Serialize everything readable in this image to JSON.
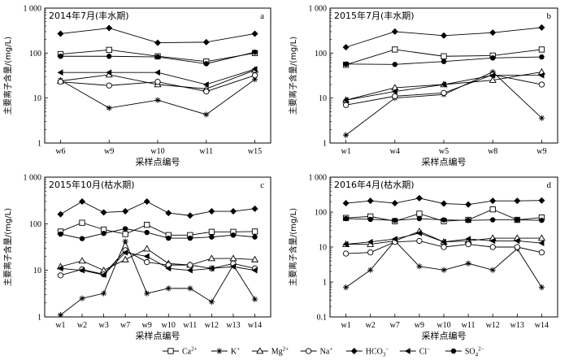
{
  "legend": [
    {
      "base": "Ca",
      "sup": "2+",
      "sub": "",
      "marker": "square-open"
    },
    {
      "base": "K",
      "sup": "+",
      "sub": "",
      "marker": "star"
    },
    {
      "base": "Mg",
      "sup": "2+",
      "sub": "",
      "marker": "triangle-open"
    },
    {
      "base": "Na",
      "sup": "+",
      "sub": "",
      "marker": "circle-open"
    },
    {
      "base": "HCO",
      "sup": "−",
      "sub": "3",
      "marker": "diamond-filled"
    },
    {
      "base": "Cl",
      "sup": "−",
      "sub": "",
      "marker": "triangle-left-filled"
    },
    {
      "base": "SO",
      "sup": "2−",
      "sub": "4",
      "marker": "circle-filled"
    }
  ],
  "chart_data": [
    {
      "type": "line",
      "letter": "a",
      "title": "2014年7月(丰水期)",
      "xlabel": "采样点编号",
      "ylabel": "主要离子含量/(mg/L)",
      "yscale": "log",
      "ylim": [
        1,
        1000
      ],
      "yticks": [
        "1",
        "10",
        "100",
        "1 000"
      ],
      "categories": [
        "w6",
        "w9",
        "w10",
        "w11",
        "w15"
      ],
      "series": [
        {
          "name": "Ca2+",
          "values": [
            95,
            118,
            85,
            65,
            100
          ]
        },
        {
          "name": "K+",
          "values": [
            25,
            6,
            9,
            4.3,
            26
          ]
        },
        {
          "name": "Mg2+",
          "values": [
            24,
            33,
            20,
            16,
            42
          ]
        },
        {
          "name": "Na+",
          "values": [
            23,
            19,
            23,
            14,
            32
          ]
        },
        {
          "name": "HCO3-",
          "values": [
            270,
            360,
            170,
            175,
            270
          ]
        },
        {
          "name": "Cl-",
          "values": [
            37,
            37,
            37,
            20,
            44
          ]
        },
        {
          "name": "SO42-",
          "values": [
            85,
            85,
            82,
            58,
            105
          ]
        }
      ]
    },
    {
      "type": "line",
      "letter": "b",
      "title": "2015年7月(丰水期)",
      "xlabel": "采样点编号",
      "ylabel": "主要离子含量/(mg/L)",
      "yscale": "log",
      "ylim": [
        1,
        1000
      ],
      "yticks": [
        "1",
        "10",
        "100",
        "1 000"
      ],
      "categories": [
        "w1",
        "w4",
        "w5",
        "w8",
        "w9"
      ],
      "series": [
        {
          "name": "Ca2+",
          "values": [
            55,
            120,
            85,
            88,
            120
          ]
        },
        {
          "name": "K+",
          "values": [
            1.5,
            10,
            12,
            38,
            3.6
          ]
        },
        {
          "name": "Mg2+",
          "values": [
            9,
            17,
            20,
            25,
            38
          ]
        },
        {
          "name": "Na+",
          "values": [
            7,
            11,
            13,
            33,
            20
          ]
        },
        {
          "name": "HCO3-",
          "values": [
            135,
            300,
            245,
            285,
            370
          ]
        },
        {
          "name": "Cl-",
          "values": [
            9,
            14,
            20,
            32,
            32
          ]
        },
        {
          "name": "SO42-",
          "values": [
            57,
            56,
            65,
            78,
            82
          ]
        }
      ]
    },
    {
      "type": "line",
      "letter": "c",
      "title": "2015年10月(枯水期)",
      "xlabel": "采样点编号",
      "ylabel": "主要离子含量/(mg/L)",
      "yscale": "log",
      "ylim": [
        1,
        1000
      ],
      "yticks": [
        "1",
        "10",
        "100",
        "1 000"
      ],
      "categories": [
        "w1",
        "w2",
        "w3",
        "w7",
        "w9",
        "w10",
        "w11",
        "w12",
        "w13",
        "w14"
      ],
      "series": [
        {
          "name": "Ca2+",
          "values": [
            68,
            105,
            75,
            60,
            95,
            57,
            57,
            67,
            67,
            68
          ]
        },
        {
          "name": "K+",
          "values": [
            1.1,
            2.5,
            3.2,
            42,
            3.2,
            4.1,
            4.1,
            2.1,
            13,
            2.4
          ]
        },
        {
          "name": "Mg2+",
          "values": [
            12,
            16,
            10,
            17,
            29,
            14,
            13,
            18,
            18,
            17
          ]
        },
        {
          "name": "Na+",
          "values": [
            7.8,
            10.5,
            8.2,
            27,
            15,
            13,
            13,
            11,
            14,
            11
          ]
        },
        {
          "name": "HCO3-",
          "values": [
            160,
            300,
            175,
            185,
            300,
            170,
            150,
            185,
            185,
            210
          ]
        },
        {
          "name": "Cl-",
          "values": [
            11,
            10,
            8,
            24,
            20,
            11,
            10,
            11,
            12,
            10
          ]
        },
        {
          "name": "SO42-",
          "values": [
            60,
            48,
            62,
            78,
            65,
            49,
            49,
            52,
            57,
            52
          ]
        }
      ]
    },
    {
      "type": "line",
      "letter": "d",
      "title": "2016年4月(枯水期)",
      "xlabel": "采样点编号",
      "ylabel": "主要离子含量/(mg/L)",
      "yscale": "log",
      "ylim": [
        0.1,
        1000
      ],
      "yticks": [
        "0.1",
        "1",
        "10",
        "100",
        "1 000"
      ],
      "categories": [
        "w1",
        "w2",
        "w7",
        "w9",
        "w10",
        "w11",
        "w12",
        "w13",
        "w14"
      ],
      "series": [
        {
          "name": "Ca2+",
          "values": [
            68,
            75,
            55,
            90,
            55,
            60,
            120,
            60,
            70
          ]
        },
        {
          "name": "K+",
          "values": [
            0.7,
            2.2,
            15,
            2.8,
            2.2,
            3.4,
            2.2,
            9,
            0.7
          ]
        },
        {
          "name": "Mg2+",
          "values": [
            12,
            12,
            15,
            28,
            14,
            15,
            18,
            18,
            18
          ]
        },
        {
          "name": "Na+",
          "values": [
            6.5,
            7,
            14,
            15,
            10,
            12,
            10,
            10,
            7
          ]
        },
        {
          "name": "HCO3-",
          "values": [
            180,
            210,
            180,
            250,
            175,
            165,
            210,
            210,
            215
          ]
        },
        {
          "name": "Cl-",
          "values": [
            12,
            14,
            17,
            25,
            14,
            17,
            15,
            15,
            13
          ]
        },
        {
          "name": "SO42-",
          "values": [
            65,
            62,
            58,
            65,
            60,
            58,
            60,
            60,
            58
          ]
        }
      ]
    }
  ]
}
